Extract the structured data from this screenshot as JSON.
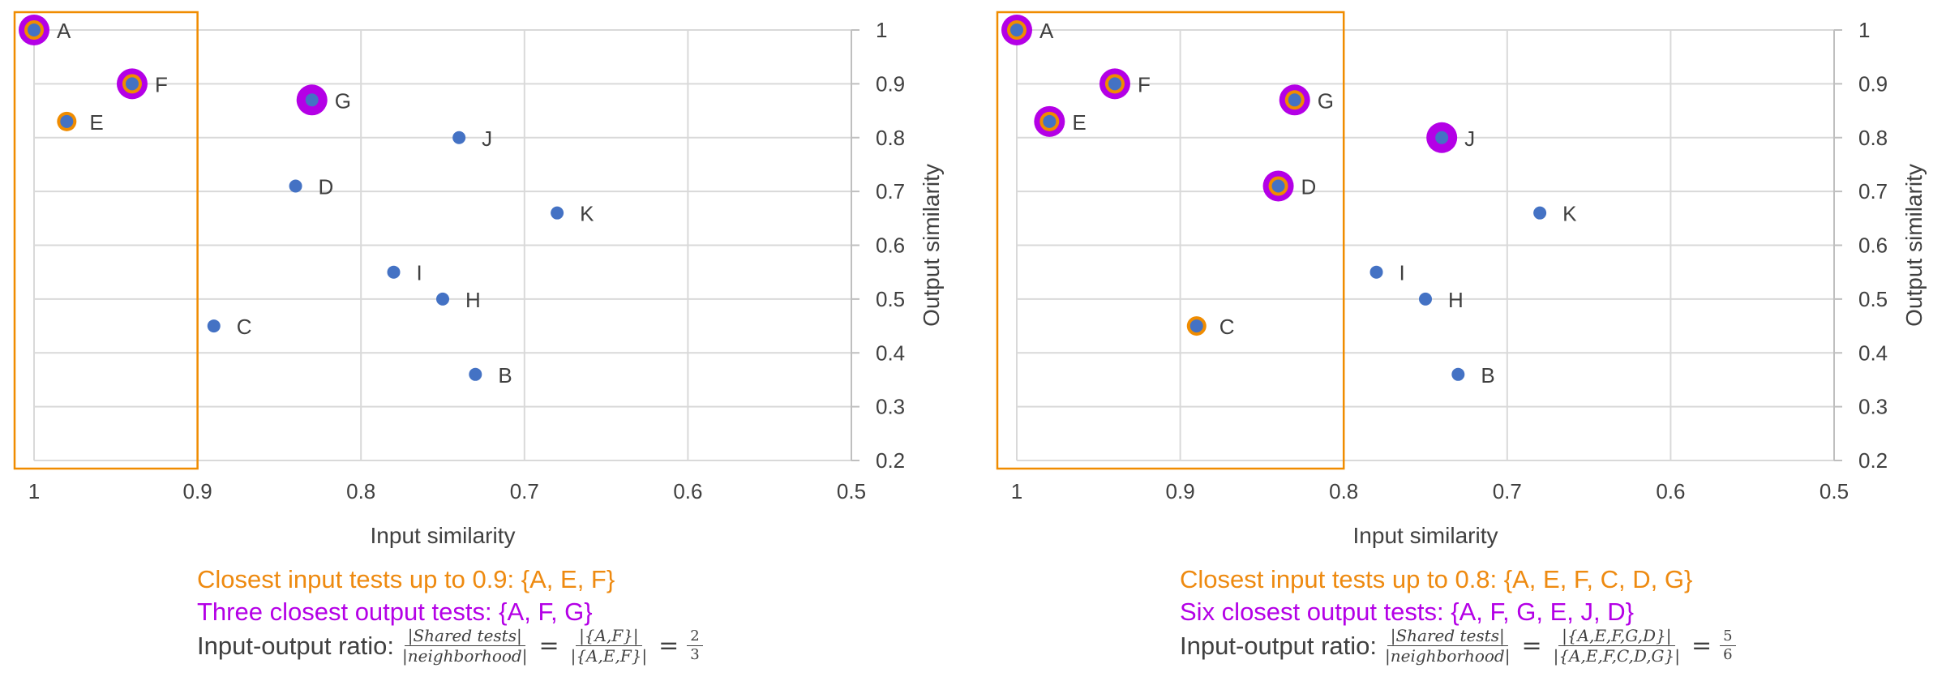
{
  "chart_data": [
    {
      "type": "scatter",
      "xlabel": "Input similarity",
      "ylabel": "Output similarity",
      "xlim": [
        1,
        0.5
      ],
      "ylim": [
        0.2,
        1
      ],
      "x_reversed": true,
      "y_axis_side": "right",
      "xticks": [
        "1",
        "0.9",
        "0.8",
        "0.7",
        "0.6",
        "0.5"
      ],
      "yticks": [
        "1",
        "0.9",
        "0.8",
        "0.7",
        "0.6",
        "0.5",
        "0.4",
        "0.3",
        "0.2"
      ],
      "grid": true,
      "points": [
        {
          "label": "A",
          "x": 1.0,
          "y": 1.0,
          "input_highlight": true,
          "output_highlight": true
        },
        {
          "label": "F",
          "x": 0.94,
          "y": 0.9,
          "input_highlight": true,
          "output_highlight": true
        },
        {
          "label": "E",
          "x": 0.98,
          "y": 0.83,
          "input_highlight": true,
          "output_highlight": false
        },
        {
          "label": "G",
          "x": 0.83,
          "y": 0.87,
          "input_highlight": false,
          "output_highlight": true
        },
        {
          "label": "J",
          "x": 0.74,
          "y": 0.8,
          "input_highlight": false,
          "output_highlight": false
        },
        {
          "label": "D",
          "x": 0.84,
          "y": 0.71,
          "input_highlight": false,
          "output_highlight": false
        },
        {
          "label": "K",
          "x": 0.68,
          "y": 0.66,
          "input_highlight": false,
          "output_highlight": false
        },
        {
          "label": "I",
          "x": 0.78,
          "y": 0.55,
          "input_highlight": false,
          "output_highlight": false
        },
        {
          "label": "H",
          "x": 0.75,
          "y": 0.5,
          "input_highlight": false,
          "output_highlight": false
        },
        {
          "label": "C",
          "x": 0.89,
          "y": 0.45,
          "input_highlight": false,
          "output_highlight": false
        },
        {
          "label": "B",
          "x": 0.73,
          "y": 0.36,
          "input_highlight": false,
          "output_highlight": false
        }
      ],
      "neighborhood_threshold": 0.9
    },
    {
      "type": "scatter",
      "xlabel": "Input similarity",
      "ylabel": "Output similarity",
      "xlim": [
        1,
        0.5
      ],
      "ylim": [
        0.2,
        1
      ],
      "x_reversed": true,
      "y_axis_side": "right",
      "xticks": [
        "1",
        "0.9",
        "0.8",
        "0.7",
        "0.6",
        "0.5"
      ],
      "yticks": [
        "1",
        "0.9",
        "0.8",
        "0.7",
        "0.6",
        "0.5",
        "0.4",
        "0.3",
        "0.2"
      ],
      "grid": true,
      "points": [
        {
          "label": "A",
          "x": 1.0,
          "y": 1.0,
          "input_highlight": true,
          "output_highlight": true
        },
        {
          "label": "F",
          "x": 0.94,
          "y": 0.9,
          "input_highlight": true,
          "output_highlight": true
        },
        {
          "label": "E",
          "x": 0.98,
          "y": 0.83,
          "input_highlight": true,
          "output_highlight": true
        },
        {
          "label": "G",
          "x": 0.83,
          "y": 0.87,
          "input_highlight": true,
          "output_highlight": true
        },
        {
          "label": "J",
          "x": 0.74,
          "y": 0.8,
          "input_highlight": false,
          "output_highlight": true
        },
        {
          "label": "D",
          "x": 0.84,
          "y": 0.71,
          "input_highlight": true,
          "output_highlight": true
        },
        {
          "label": "K",
          "x": 0.68,
          "y": 0.66,
          "input_highlight": false,
          "output_highlight": false
        },
        {
          "label": "I",
          "x": 0.78,
          "y": 0.55,
          "input_highlight": false,
          "output_highlight": false
        },
        {
          "label": "H",
          "x": 0.75,
          "y": 0.5,
          "input_highlight": false,
          "output_highlight": false
        },
        {
          "label": "C",
          "x": 0.89,
          "y": 0.45,
          "input_highlight": true,
          "output_highlight": false
        },
        {
          "label": "B",
          "x": 0.73,
          "y": 0.36,
          "input_highlight": false,
          "output_highlight": false
        }
      ],
      "neighborhood_threshold": 0.8
    }
  ],
  "colors": {
    "point": "#4472C4",
    "input_ring": "#F08C00",
    "output_ring": "#B400E6",
    "grid": "#D9D9D9",
    "axis_text": "#404040"
  },
  "captions": [
    {
      "input_line": "Closest input tests up to 0.9: {A, E, F}",
      "output_line": "Three closest output tests: {A, F, G}",
      "ratio_label": "Input-output ratio:",
      "frac1_num": "|Shared tests|",
      "frac1_den": "|neighborhood|",
      "frac2_num": "|{A,F}|",
      "frac2_den": "|{A,E,F}|",
      "result_num": "2",
      "result_den": "3"
    },
    {
      "input_line": "Closest input tests up to 0.8: {A, E, F, C, D, G}",
      "output_line": "Six closest output tests: {A, F, G, E, J, D}",
      "ratio_label": "Input-output ratio:",
      "frac1_num": "|Shared tests|",
      "frac1_den": "|neighborhood|",
      "frac2_num": "|{A,E,F,G,D}|",
      "frac2_den": "|{A,E,F,C,D,G}|",
      "result_num": "5",
      "result_den": "6"
    }
  ]
}
